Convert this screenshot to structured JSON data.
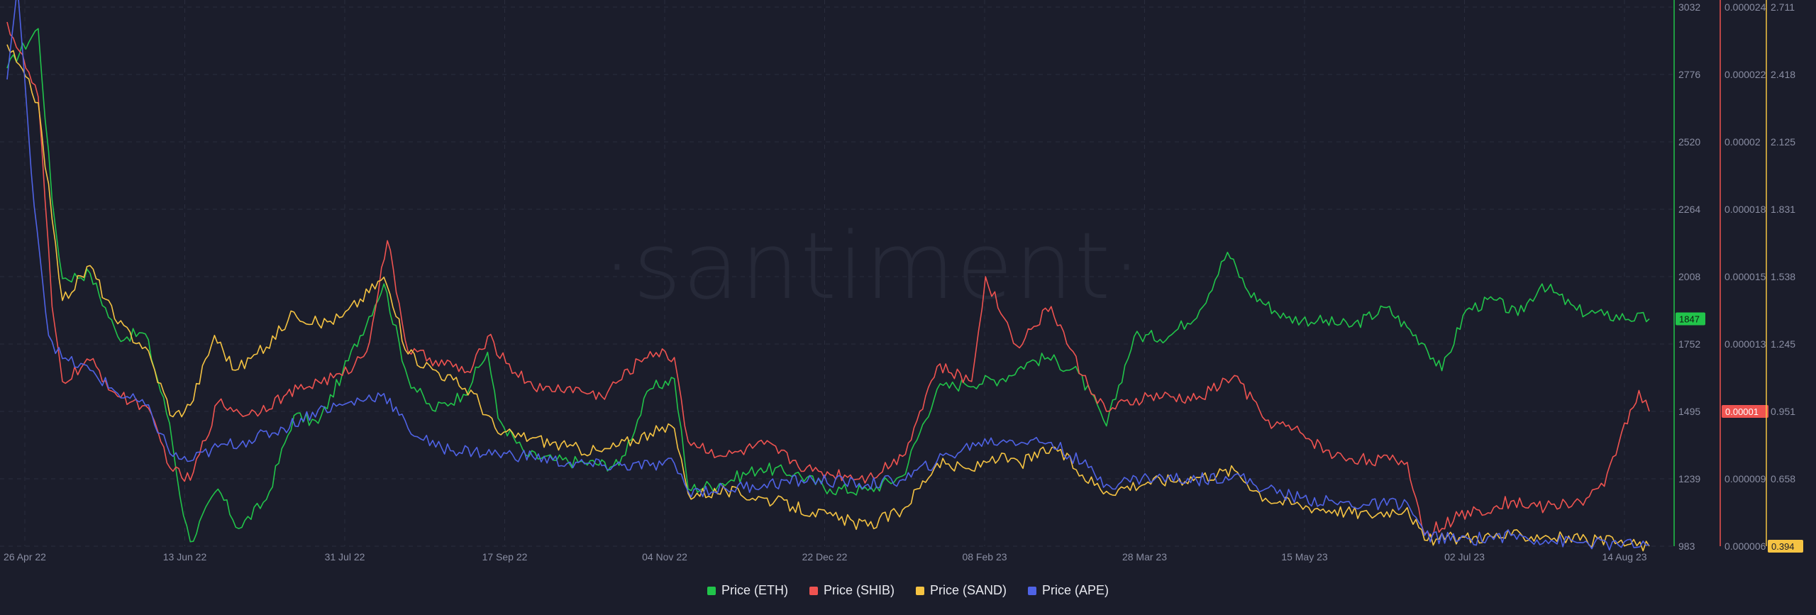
{
  "watermark": "·santiment·",
  "chart_data": {
    "type": "line",
    "x_ticks": [
      "26 Apr 22",
      "13 Jun 22",
      "31 Jul 22",
      "17 Sep 22",
      "04 Nov 22",
      "22 Dec 22",
      "08 Feb 23",
      "28 Mar 23",
      "15 May 23",
      "02 Jul 23",
      "14 Aug 23"
    ],
    "x_range": [
      "2022-04-26",
      "2023-08-14"
    ],
    "grid": true,
    "legend_position": "bottom-center",
    "axes": [
      {
        "id": "eth",
        "color": "#21c44a",
        "range": [
          983,
          3032
        ],
        "ticks": [
          "3032",
          "2776",
          "2520",
          "2264",
          "2008",
          "1752",
          "1495",
          "1239",
          "983"
        ],
        "last_value_badge": "1847"
      },
      {
        "id": "shib",
        "color": "#ef5350",
        "range": [
          6e-06,
          2.4e-05
        ],
        "ticks": [
          "0.000024",
          "0.000022",
          "0.00002",
          "0.000018",
          "0.000015",
          "0.000013",
          "0.000011",
          "0.000009",
          "0.000006"
        ],
        "last_value_badge": "0.00001"
      },
      {
        "id": "sand",
        "color": "#f5c342",
        "range": [
          0.394,
          2.711
        ],
        "ticks": [
          "2.711",
          "2.418",
          "2.125",
          "1.831",
          "1.538",
          "1.245",
          "0.951",
          "0.658",
          "0.365"
        ],
        "last_value_badge": "0.394"
      }
    ],
    "series": [
      {
        "name": "Price (ETH)",
        "axis": "eth",
        "color": "#21c44a",
        "points": [
          [
            "2022-04-26",
            2800
          ],
          [
            "2022-05-05",
            2950
          ],
          [
            "2022-05-09",
            2300
          ],
          [
            "2022-05-12",
            2000
          ],
          [
            "2022-05-20",
            2020
          ],
          [
            "2022-05-28",
            1780
          ],
          [
            "2022-06-05",
            1790
          ],
          [
            "2022-06-12",
            1450
          ],
          [
            "2022-06-16",
            1100
          ],
          [
            "2022-06-18",
            1000
          ],
          [
            "2022-06-26",
            1200
          ],
          [
            "2022-07-02",
            1050
          ],
          [
            "2022-07-10",
            1160
          ],
          [
            "2022-07-18",
            1480
          ],
          [
            "2022-07-25",
            1450
          ],
          [
            "2022-08-01",
            1640
          ],
          [
            "2022-08-13",
            1980
          ],
          [
            "2022-08-20",
            1620
          ],
          [
            "2022-08-27",
            1500
          ],
          [
            "2022-09-05",
            1560
          ],
          [
            "2022-09-12",
            1720
          ],
          [
            "2022-09-15",
            1470
          ],
          [
            "2022-09-23",
            1330
          ],
          [
            "2022-10-01",
            1310
          ],
          [
            "2022-10-10",
            1300
          ],
          [
            "2022-10-20",
            1290
          ],
          [
            "2022-10-29",
            1580
          ],
          [
            "2022-11-05",
            1620
          ],
          [
            "2022-11-09",
            1200
          ],
          [
            "2022-11-18",
            1220
          ],
          [
            "2022-11-30",
            1280
          ],
          [
            "2022-12-10",
            1260
          ],
          [
            "2022-12-20",
            1200
          ],
          [
            "2022-12-31",
            1195
          ],
          [
            "2023-01-10",
            1250
          ],
          [
            "2023-01-20",
            1580
          ],
          [
            "2023-01-28",
            1600
          ],
          [
            "2023-02-08",
            1620
          ],
          [
            "2023-02-15",
            1680
          ],
          [
            "2023-02-21",
            1700
          ],
          [
            "2023-03-02",
            1640
          ],
          [
            "2023-03-10",
            1440
          ],
          [
            "2023-03-18",
            1780
          ],
          [
            "2023-03-28",
            1780
          ],
          [
            "2023-04-06",
            1880
          ],
          [
            "2023-04-14",
            2100
          ],
          [
            "2023-04-20",
            1950
          ],
          [
            "2023-05-01",
            1850
          ],
          [
            "2023-05-10",
            1840
          ],
          [
            "2023-05-20",
            1820
          ],
          [
            "2023-05-30",
            1890
          ],
          [
            "2023-06-10",
            1750
          ],
          [
            "2023-06-15",
            1650
          ],
          [
            "2023-06-22",
            1880
          ],
          [
            "2023-06-30",
            1920
          ],
          [
            "2023-07-07",
            1860
          ],
          [
            "2023-07-14",
            1980
          ],
          [
            "2023-07-24",
            1880
          ],
          [
            "2023-08-01",
            1860
          ],
          [
            "2023-08-14",
            1847
          ]
        ]
      },
      {
        "name": "Price (SHIB)",
        "axis": "shib",
        "color": "#ef5350",
        "points": [
          [
            "2022-04-26",
            2.35e-05
          ],
          [
            "2022-05-05",
            2.1e-05
          ],
          [
            "2022-05-09",
            1.4e-05
          ],
          [
            "2022-05-12",
            1.15e-05
          ],
          [
            "2022-05-20",
            1.22e-05
          ],
          [
            "2022-05-28",
            1.1e-05
          ],
          [
            "2022-06-05",
            1.07e-05
          ],
          [
            "2022-06-13",
            8.5e-06
          ],
          [
            "2022-06-18",
            8.2e-06
          ],
          [
            "2022-06-26",
            1.08e-05
          ],
          [
            "2022-07-05",
            1.04e-05
          ],
          [
            "2022-07-15",
            1.1e-05
          ],
          [
            "2022-07-25",
            1.15e-05
          ],
          [
            "2022-08-01",
            1.17e-05
          ],
          [
            "2022-08-08",
            1.25e-05
          ],
          [
            "2022-08-14",
            1.62e-05
          ],
          [
            "2022-08-20",
            1.25e-05
          ],
          [
            "2022-08-28",
            1.22e-05
          ],
          [
            "2022-09-07",
            1.18e-05
          ],
          [
            "2022-09-12",
            1.3e-05
          ],
          [
            "2022-09-20",
            1.18e-05
          ],
          [
            "2022-09-28",
            1.12e-05
          ],
          [
            "2022-10-05",
            1.13e-05
          ],
          [
            "2022-10-15",
            1.1e-05
          ],
          [
            "2022-10-29",
            1.25e-05
          ],
          [
            "2022-11-05",
            1.23e-05
          ],
          [
            "2022-11-09",
            9.5e-06
          ],
          [
            "2022-11-20",
            9e-06
          ],
          [
            "2022-12-01",
            9.4e-06
          ],
          [
            "2022-12-15",
            8.5e-06
          ],
          [
            "2022-12-31",
            8.3e-06
          ],
          [
            "2023-01-10",
            9e-06
          ],
          [
            "2023-01-20",
            1.2e-05
          ],
          [
            "2023-01-30",
            1.15e-05
          ],
          [
            "2023-02-03",
            1.5e-05
          ],
          [
            "2023-02-12",
            1.27e-05
          ],
          [
            "2023-02-22",
            1.4e-05
          ],
          [
            "2023-03-03",
            1.17e-05
          ],
          [
            "2023-03-10",
            1.05e-05
          ],
          [
            "2023-03-22",
            1.1e-05
          ],
          [
            "2023-04-05",
            1.09e-05
          ],
          [
            "2023-04-16",
            1.17e-05
          ],
          [
            "2023-04-25",
            1.02e-05
          ],
          [
            "2023-05-05",
            9.8e-06
          ],
          [
            "2023-05-15",
            9e-06
          ],
          [
            "2023-05-25",
            8.9e-06
          ],
          [
            "2023-06-05",
            8.8e-06
          ],
          [
            "2023-06-10",
            6.4e-06
          ],
          [
            "2023-06-20",
            7e-06
          ],
          [
            "2023-07-05",
            7.5e-06
          ],
          [
            "2023-07-15",
            7.3e-06
          ],
          [
            "2023-07-25",
            7.5e-06
          ],
          [
            "2023-08-01",
            8e-06
          ],
          [
            "2023-08-06",
            9.8e-06
          ],
          [
            "2023-08-11",
            1.12e-05
          ],
          [
            "2023-08-14",
            1.05e-05
          ]
        ]
      },
      {
        "name": "Price (SAND)",
        "axis": "sand",
        "color": "#f5c342",
        "points": [
          [
            "2022-04-26",
            2.55
          ],
          [
            "2022-05-05",
            2.3
          ],
          [
            "2022-05-09",
            1.8
          ],
          [
            "2022-05-12",
            1.45
          ],
          [
            "2022-05-20",
            1.6
          ],
          [
            "2022-05-28",
            1.35
          ],
          [
            "2022-06-05",
            1.25
          ],
          [
            "2022-06-13",
            0.95
          ],
          [
            "2022-06-18",
            1.0
          ],
          [
            "2022-06-25",
            1.3
          ],
          [
            "2022-07-01",
            1.15
          ],
          [
            "2022-07-10",
            1.25
          ],
          [
            "2022-07-18",
            1.4
          ],
          [
            "2022-07-25",
            1.35
          ],
          [
            "2022-08-01",
            1.38
          ],
          [
            "2022-08-13",
            1.55
          ],
          [
            "2022-08-20",
            1.22
          ],
          [
            "2022-08-28",
            1.15
          ],
          [
            "2022-09-08",
            1.05
          ],
          [
            "2022-09-15",
            0.88
          ],
          [
            "2022-09-25",
            0.86
          ],
          [
            "2022-10-05",
            0.82
          ],
          [
            "2022-10-15",
            0.8
          ],
          [
            "2022-10-29",
            0.88
          ],
          [
            "2022-11-05",
            0.9
          ],
          [
            "2022-11-09",
            0.62
          ],
          [
            "2022-11-20",
            0.63
          ],
          [
            "2022-12-01",
            0.6
          ],
          [
            "2022-12-15",
            0.54
          ],
          [
            "2022-12-31",
            0.48
          ],
          [
            "2023-01-10",
            0.55
          ],
          [
            "2023-01-20",
            0.75
          ],
          [
            "2023-01-30",
            0.72
          ],
          [
            "2023-02-05",
            0.78
          ],
          [
            "2023-02-13",
            0.75
          ],
          [
            "2023-02-23",
            0.82
          ],
          [
            "2023-03-03",
            0.7
          ],
          [
            "2023-03-10",
            0.63
          ],
          [
            "2023-03-22",
            0.67
          ],
          [
            "2023-04-05",
            0.69
          ],
          [
            "2023-04-16",
            0.72
          ],
          [
            "2023-04-25",
            0.6
          ],
          [
            "2023-05-05",
            0.57
          ],
          [
            "2023-05-15",
            0.55
          ],
          [
            "2023-05-25",
            0.53
          ],
          [
            "2023-06-05",
            0.56
          ],
          [
            "2023-06-10",
            0.42
          ],
          [
            "2023-06-20",
            0.43
          ],
          [
            "2023-07-05",
            0.44
          ],
          [
            "2023-07-15",
            0.44
          ],
          [
            "2023-07-25",
            0.42
          ],
          [
            "2023-08-05",
            0.41
          ],
          [
            "2023-08-14",
            0.394
          ]
        ]
      },
      {
        "name": "Price (APE)",
        "axis": "sand",
        "color": "#4f63e6",
        "points": [
          [
            "2022-04-26",
            2.4
          ],
          [
            "2022-04-29",
            2.8
          ],
          [
            "2022-05-03",
            2.0
          ],
          [
            "2022-05-08",
            1.3
          ],
          [
            "2022-05-12",
            1.2
          ],
          [
            "2022-05-20",
            1.15
          ],
          [
            "2022-05-28",
            1.05
          ],
          [
            "2022-06-05",
            1.0
          ],
          [
            "2022-06-13",
            0.78
          ],
          [
            "2022-06-18",
            0.76
          ],
          [
            "2022-06-26",
            0.82
          ],
          [
            "2022-07-05",
            0.85
          ],
          [
            "2022-07-15",
            0.9
          ],
          [
            "2022-07-25",
            0.98
          ],
          [
            "2022-08-01",
            1.0
          ],
          [
            "2022-08-13",
            1.05
          ],
          [
            "2022-08-20",
            0.9
          ],
          [
            "2022-08-28",
            0.82
          ],
          [
            "2022-09-08",
            0.8
          ],
          [
            "2022-09-15",
            0.79
          ],
          [
            "2022-09-25",
            0.78
          ],
          [
            "2022-10-05",
            0.75
          ],
          [
            "2022-10-15",
            0.74
          ],
          [
            "2022-10-29",
            0.74
          ],
          [
            "2022-11-05",
            0.75
          ],
          [
            "2022-11-09",
            0.63
          ],
          [
            "2022-11-20",
            0.64
          ],
          [
            "2022-12-01",
            0.66
          ],
          [
            "2022-12-15",
            0.68
          ],
          [
            "2022-12-31",
            0.66
          ],
          [
            "2023-01-10",
            0.68
          ],
          [
            "2023-01-20",
            0.76
          ],
          [
            "2023-02-01",
            0.84
          ],
          [
            "2023-02-10",
            0.85
          ],
          [
            "2023-02-22",
            0.84
          ],
          [
            "2023-03-03",
            0.75
          ],
          [
            "2023-03-10",
            0.66
          ],
          [
            "2023-03-22",
            0.69
          ],
          [
            "2023-04-05",
            0.68
          ],
          [
            "2023-04-16",
            0.7
          ],
          [
            "2023-04-25",
            0.64
          ],
          [
            "2023-05-05",
            0.6
          ],
          [
            "2023-05-15",
            0.58
          ],
          [
            "2023-05-25",
            0.57
          ],
          [
            "2023-06-05",
            0.58
          ],
          [
            "2023-06-10",
            0.44
          ],
          [
            "2023-06-20",
            0.42
          ],
          [
            "2023-07-05",
            0.44
          ],
          [
            "2023-07-15",
            0.42
          ],
          [
            "2023-07-25",
            0.41
          ],
          [
            "2023-08-05",
            0.4
          ],
          [
            "2023-08-14",
            0.4
          ]
        ]
      }
    ]
  }
}
